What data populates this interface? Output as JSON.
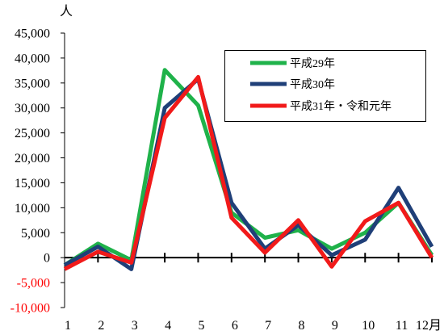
{
  "chart_data": {
    "type": "line",
    "ylabel": "人",
    "categories": [
      "1",
      "2",
      "3",
      "4",
      "5",
      "6",
      "7",
      "8",
      "9",
      "10",
      "11",
      "12月"
    ],
    "ylim": [
      -10000,
      45000
    ],
    "yticks": [
      45000,
      40000,
      35000,
      30000,
      25000,
      20000,
      15000,
      10000,
      5000,
      0,
      -5000,
      -10000
    ],
    "grid": false,
    "legend": "top-right",
    "negative_tick_color": "#ff0000",
    "series": [
      {
        "name": "平成29年",
        "color": "#1fb24a",
        "values": [
          -1500,
          2800,
          -500,
          37600,
          30500,
          9000,
          4000,
          5500,
          1800,
          5000,
          11000,
          500
        ]
      },
      {
        "name": "平成30年",
        "color": "#1f3f78",
        "values": [
          -1500,
          2200,
          -2300,
          30000,
          35800,
          11000,
          1800,
          6500,
          500,
          3600,
          14000,
          2200
        ]
      },
      {
        "name": "平成31年・令和元年",
        "color": "#f11a1a",
        "values": [
          -2300,
          1200,
          -1000,
          28000,
          36200,
          8000,
          1000,
          7500,
          -1800,
          7300,
          11000,
          0
        ]
      }
    ]
  }
}
